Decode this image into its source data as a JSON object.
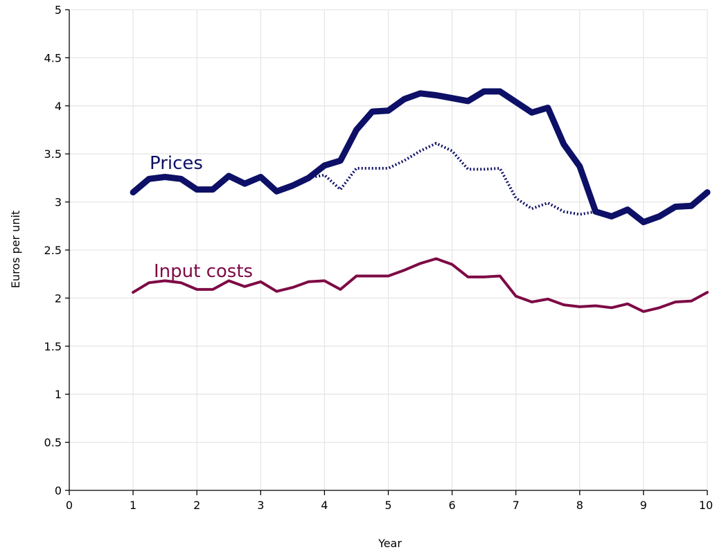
{
  "chart_data": {
    "type": "line",
    "title": "",
    "xlabel": "Year",
    "ylabel": "Euros per unit",
    "xlim": [
      0,
      10
    ],
    "ylim": [
      0,
      5
    ],
    "xticks": [
      0,
      1,
      2,
      3,
      4,
      5,
      6,
      7,
      8,
      9,
      10
    ],
    "xtick_labels": [
      "0",
      "1",
      "2",
      "3",
      "4",
      "5",
      "6",
      "7",
      "8",
      "9",
      "10"
    ],
    "yticks": [
      0,
      0.5,
      1,
      1.5,
      2,
      2.5,
      3,
      3.5,
      4,
      4.5,
      5
    ],
    "ytick_labels": [
      "0",
      "0.5",
      "1",
      "1.5",
      "2",
      "2.5",
      "3",
      "3.5",
      "4",
      "4.5",
      "5"
    ],
    "grid": true,
    "legend": "inline labels",
    "series": [
      {
        "name": "Prices",
        "style": "thick-solid",
        "color": "#0d1066",
        "x": [
          1,
          1.25,
          1.5,
          1.75,
          2,
          2.25,
          2.5,
          2.75,
          3,
          3.25,
          3.5,
          3.75,
          4,
          4.25,
          4.5,
          4.75,
          5,
          5.25,
          5.5,
          5.75,
          6,
          6.25,
          6.5,
          6.75,
          7,
          7.25,
          7.5,
          7.75,
          8,
          8.25,
          8.5,
          8.75,
          9,
          9.25,
          9.5,
          9.75,
          10
        ],
        "values": [
          3.1,
          3.24,
          3.26,
          3.24,
          3.13,
          3.13,
          3.27,
          3.19,
          3.26,
          3.11,
          3.17,
          3.25,
          3.38,
          3.43,
          3.75,
          3.94,
          3.95,
          4.07,
          4.13,
          4.11,
          4.08,
          4.05,
          4.15,
          4.15,
          4.04,
          3.93,
          3.98,
          3.6,
          3.37,
          2.9,
          2.85,
          2.92,
          2.79,
          2.85,
          2.95,
          2.96,
          3.1
        ]
      },
      {
        "style": "dotted",
        "color": "#0d1066",
        "x": [
          3.75,
          4,
          4.25,
          4.5,
          4.75,
          5,
          5.25,
          5.5,
          5.75,
          6,
          6.25,
          6.5,
          6.75,
          7,
          7.25,
          7.5,
          7.75,
          8,
          8.25
        ],
        "values": [
          3.25,
          3.28,
          3.13,
          3.35,
          3.35,
          3.35,
          3.43,
          3.53,
          3.61,
          3.53,
          3.34,
          3.34,
          3.35,
          3.04,
          2.93,
          2.99,
          2.9,
          2.87,
          2.9
        ]
      },
      {
        "name": "Input costs",
        "style": "solid",
        "color": "#7d0a45",
        "x": [
          1,
          1.25,
          1.5,
          1.75,
          2,
          2.25,
          2.5,
          2.75,
          3,
          3.25,
          3.5,
          3.75,
          4,
          4.25,
          4.5,
          4.75,
          5,
          5.25,
          5.5,
          5.75,
          6,
          6.25,
          6.5,
          6.75,
          7,
          7.25,
          7.5,
          7.75,
          8,
          8.25,
          8.5,
          8.75,
          9,
          9.25,
          9.5,
          9.75,
          10
        ],
        "values": [
          2.06,
          2.16,
          2.18,
          2.16,
          2.09,
          2.09,
          2.18,
          2.12,
          2.17,
          2.07,
          2.11,
          2.17,
          2.18,
          2.09,
          2.23,
          2.23,
          2.23,
          2.29,
          2.36,
          2.41,
          2.35,
          2.22,
          2.22,
          2.23,
          2.02,
          1.96,
          1.99,
          1.93,
          1.91,
          1.92,
          1.9,
          1.94,
          1.86,
          1.9,
          1.96,
          1.97,
          2.06
        ]
      }
    ]
  }
}
